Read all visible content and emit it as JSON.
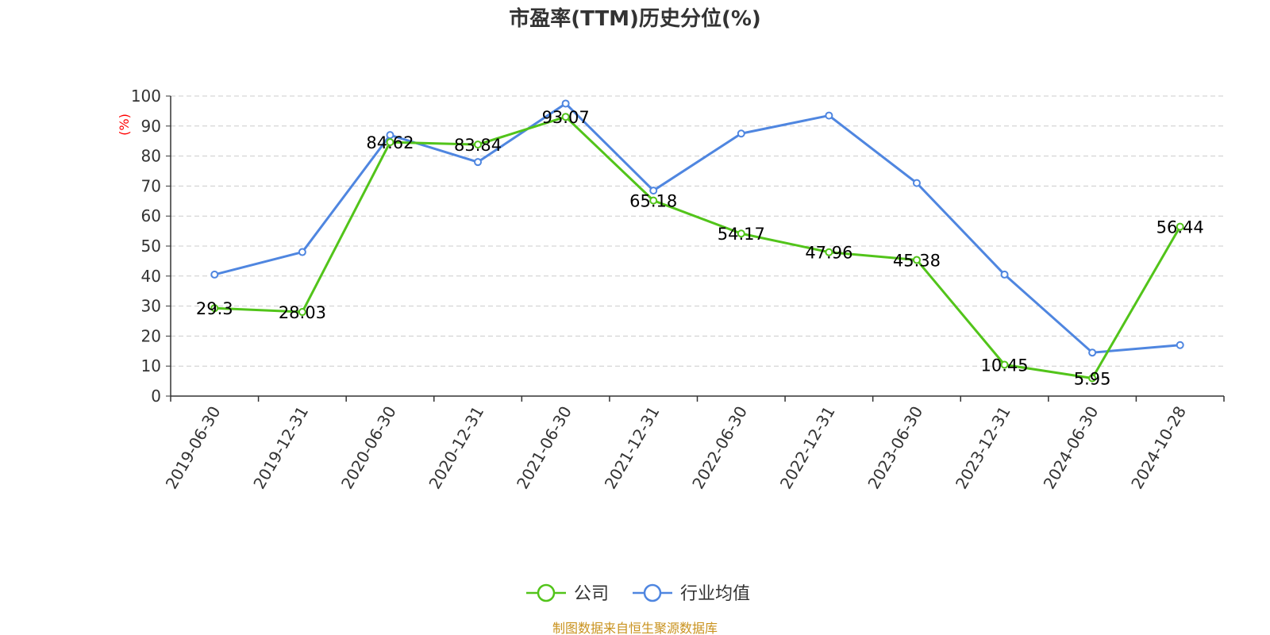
{
  "chart_data": {
    "type": "line",
    "title": "市盈率(TTM)历史分位(%)",
    "ylabel": "(%)",
    "ylabel_color": "#ff0000",
    "ylim": [
      0,
      100
    ],
    "yticks": [
      0,
      10,
      20,
      30,
      40,
      50,
      60,
      70,
      80,
      90,
      100
    ],
    "grid": true,
    "legend_position": "bottom-center",
    "x": [
      "2019-06-30",
      "2019-12-31",
      "2020-06-30",
      "2020-12-31",
      "2021-06-30",
      "2021-12-31",
      "2022-06-30",
      "2022-12-31",
      "2023-06-30",
      "2023-12-31",
      "2024-06-30",
      "2024-10-28"
    ],
    "series": [
      {
        "name": "公司",
        "color": "#52c41a",
        "show_labels": true,
        "values": [
          29.3,
          28.03,
          84.62,
          83.84,
          93.07,
          65.18,
          54.17,
          47.96,
          45.38,
          10.45,
          5.95,
          56.44
        ]
      },
      {
        "name": "行业均值",
        "color": "#4f86e0",
        "show_labels": false,
        "values": [
          40.5,
          48,
          87,
          78,
          97.5,
          68.5,
          87.5,
          93.5,
          71,
          40.5,
          14.5,
          17
        ]
      }
    ]
  },
  "footer": {
    "text": "制图数据来自恒生聚源数据库",
    "color": "#c9921e"
  }
}
